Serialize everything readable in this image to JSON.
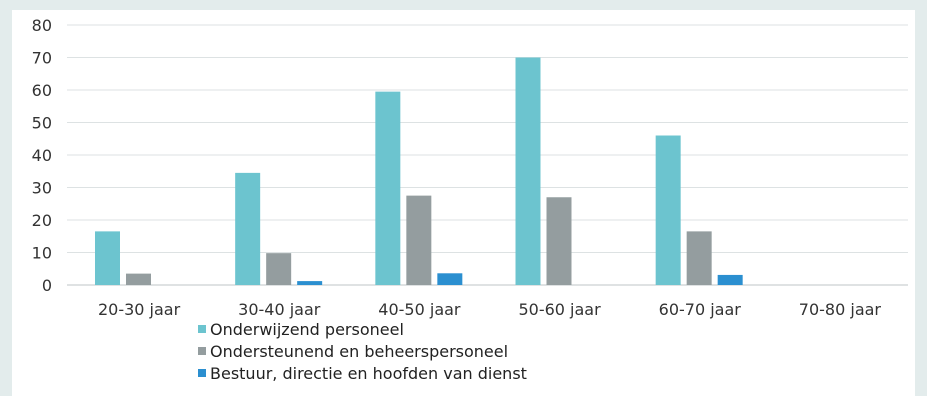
{
  "chart_data": {
    "type": "bar",
    "categories": [
      "20-30 jaar",
      "30-40 jaar",
      "40-50 jaar",
      "50-60 jaar",
      "60-70 jaar",
      "70-80 jaar"
    ],
    "series": [
      {
        "name": "Onderwijzend personeel",
        "color": "#6cc4cf",
        "values": [
          16.5,
          34.5,
          59.5,
          70,
          46,
          0
        ]
      },
      {
        "name": "Ondersteunend en beheerspersoneel",
        "color": "#949d9f",
        "values": [
          3.5,
          9.8,
          27.5,
          27,
          16.5,
          0
        ]
      },
      {
        "name": "Bestuur, directie en hoofden van dienst",
        "color": "#2b8fd0",
        "values": [
          0,
          1.2,
          3.6,
          0,
          3.1,
          0
        ]
      }
    ],
    "yticks": [
      0,
      10,
      20,
      30,
      40,
      50,
      60,
      70,
      80
    ],
    "ylim": [
      0,
      80
    ],
    "grid": true,
    "legend_position": "bottom-left"
  }
}
